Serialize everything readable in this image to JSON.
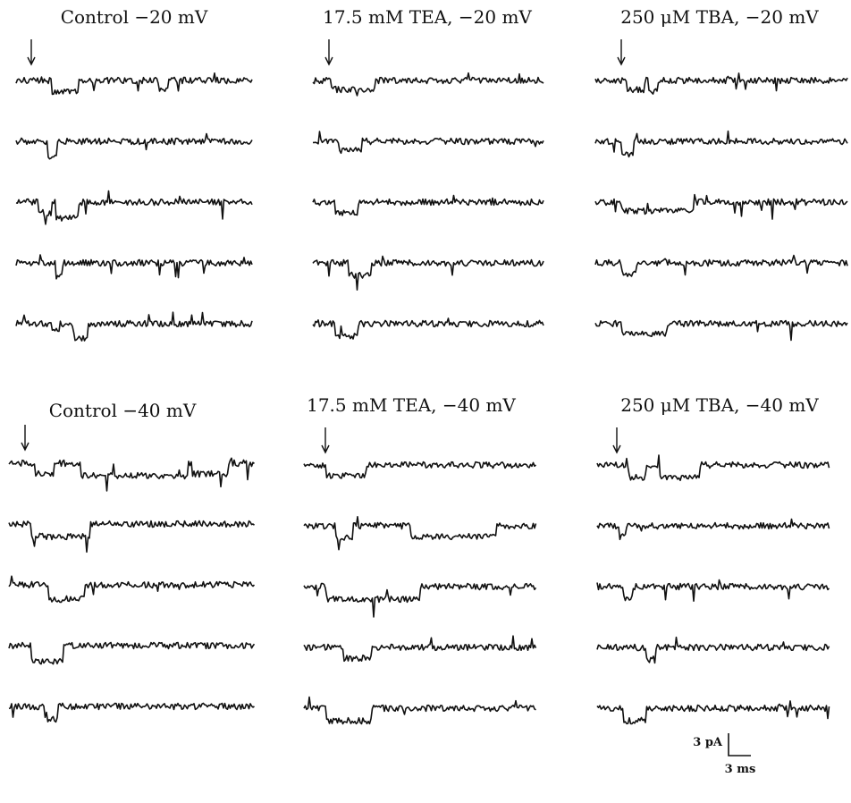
{
  "panels": [
    {
      "title": "Control −20 mV"
    },
    {
      "title": "17.5 mM TEA, −20 mV"
    },
    {
      "title": "250 μM TBA, −20 mV"
    },
    {
      "title": "Control −40 mV"
    },
    {
      "title": "17.5 mM TEA, −40 mV"
    },
    {
      "title": "250 μM TBA, −40 mV"
    }
  ],
  "scale_bar": {
    "current": "3 pA",
    "time": "3 ms"
  },
  "trace_color": "#111111"
}
